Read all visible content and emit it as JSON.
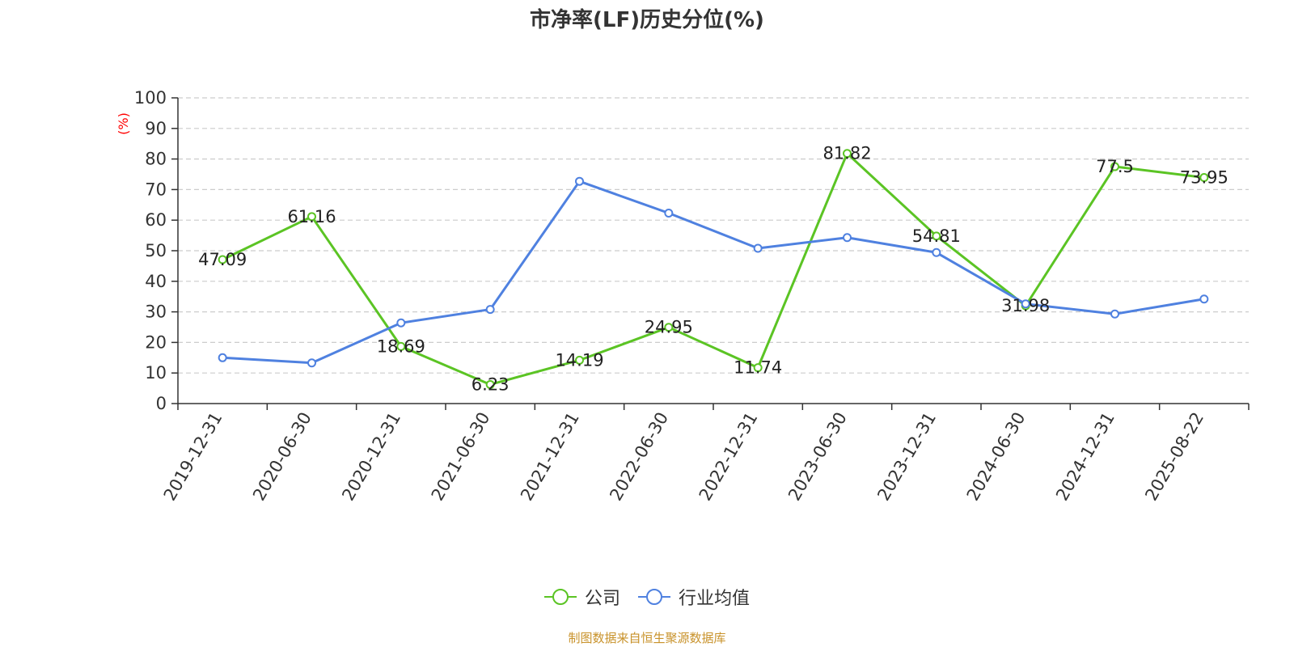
{
  "chart_data": {
    "type": "line",
    "title": "市净率(LF)历史分位(%)",
    "ylabel": "(%)",
    "xlabel": "",
    "ylim": [
      0,
      100
    ],
    "yticks": [
      0,
      10,
      20,
      30,
      40,
      50,
      60,
      70,
      80,
      90,
      100
    ],
    "grid": true,
    "legend_position": "bottom",
    "categories": [
      "2019-12-31",
      "2020-06-30",
      "2020-12-31",
      "2021-06-30",
      "2021-12-31",
      "2022-06-30",
      "2022-12-31",
      "2023-06-30",
      "2023-12-31",
      "2024-06-30",
      "2024-12-31",
      "2025-08-22"
    ],
    "series": [
      {
        "name": "公司",
        "color": "#5bc424",
        "values": [
          47.09,
          61.16,
          18.69,
          6.23,
          14.19,
          24.95,
          11.74,
          81.82,
          54.81,
          31.98,
          77.5,
          73.95
        ],
        "labels": [
          "47.09",
          "61.16",
          "18.69",
          "6.23",
          "14.19",
          "24.95",
          "11.74",
          "81.82",
          "54.81",
          "31.98",
          "77.5",
          "73.95"
        ]
      },
      {
        "name": "行业均值",
        "color": "#4f81e0",
        "values": [
          15.0,
          13.3,
          26.4,
          30.8,
          72.7,
          62.3,
          50.8,
          54.3,
          49.4,
          32.6,
          29.3,
          34.2
        ]
      }
    ]
  },
  "source_text": "制图数据来自恒生聚源数据库"
}
